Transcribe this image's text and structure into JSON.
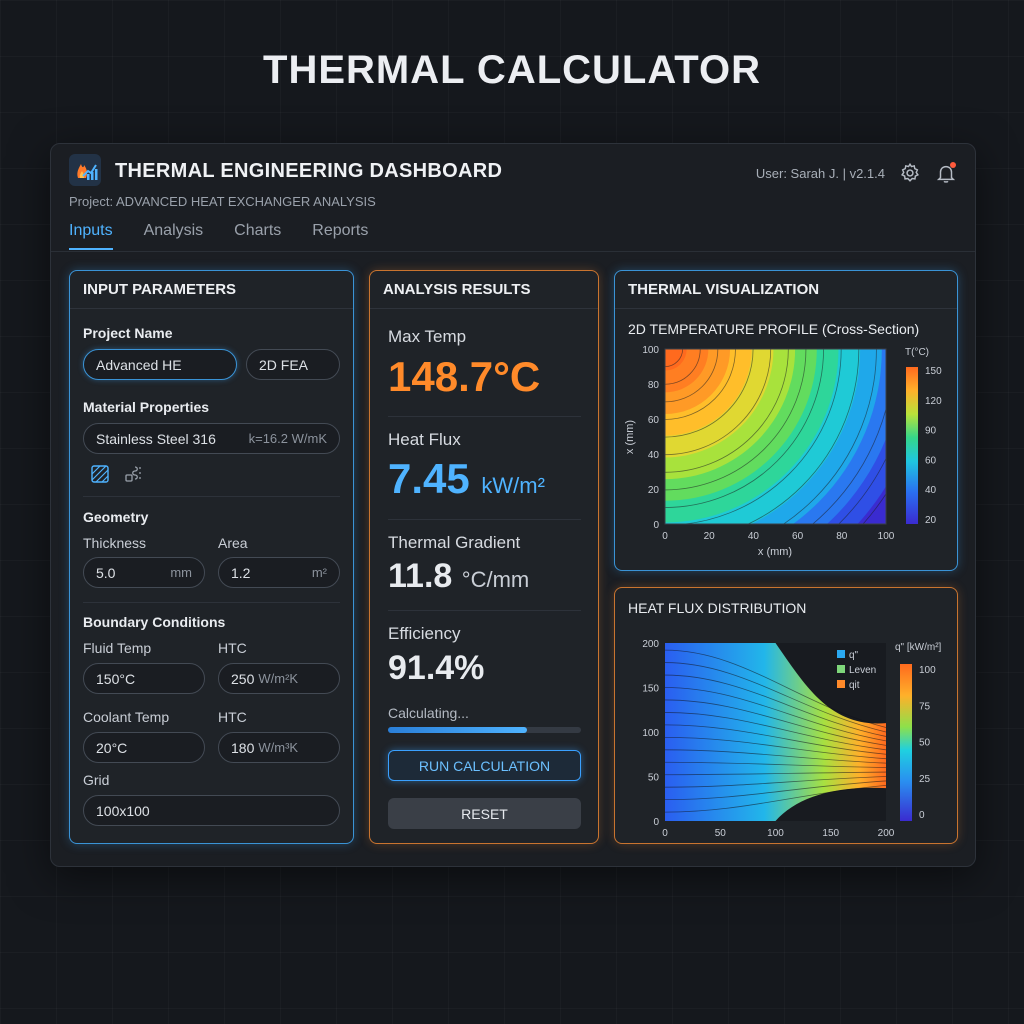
{
  "page": {
    "title": "THERMAL CALCULATOR"
  },
  "header": {
    "title": "THERMAL ENGINEERING DASHBOARD",
    "project": "Project: ADVANCED HEAT EXCHANGER ANALYSIS",
    "user_info": "User: Sarah J. | v2.1.4",
    "icons": [
      "flame-chart-logo-icon",
      "gear-icon",
      "bell-icon"
    ]
  },
  "tabs": [
    {
      "label": "Inputs",
      "active": true
    },
    {
      "label": "Analysis",
      "active": false
    },
    {
      "label": "Charts",
      "active": false
    },
    {
      "label": "Reports",
      "active": false
    }
  ],
  "inputs": {
    "title": "INPUT PARAMETERS",
    "project_name_label": "Project Name",
    "project_name_value": "Advanced HE",
    "method_value": "2D FEA",
    "material_label": "Material Properties",
    "material_value": "Stainless Steel 316",
    "material_k": "k=16.2 W/mK",
    "material_icons": [
      "hatch-pattern-icon",
      "material-tool-icon"
    ],
    "geometry_label": "Geometry",
    "thickness_label": "Thickness",
    "thickness_value": "5.0",
    "thickness_unit": "mm",
    "area_label": "Area",
    "area_value": "1.2",
    "area_unit": "m²",
    "boundary_label": "Boundary Conditions",
    "fluid_temp_label": "Fluid Temp",
    "fluid_temp_value": "150°C",
    "htc1_label": "HTC",
    "htc1_value": "250",
    "htc1_unit": "W/m²K",
    "coolant_temp_label": "Coolant Temp",
    "coolant_temp_value": "20°C",
    "htc2_label": "HTC",
    "htc2_value": "180",
    "htc2_unit": "W/m³K",
    "grid_label": "Grid",
    "grid_value": "100x100"
  },
  "results": {
    "title": "ANALYSIS RESULTS",
    "max_temp_label": "Max Temp",
    "max_temp_value": "148.7°C",
    "heat_flux_label": "Heat Flux",
    "heat_flux_value": "7.45",
    "heat_flux_unit": "kW/m²",
    "gradient_label": "Thermal Gradient",
    "gradient_value": "11.8",
    "gradient_unit": "°C/mm",
    "efficiency_label": "Efficiency",
    "efficiency_value": "91.4%",
    "status_text": "Calculating...",
    "progress": 0.72,
    "run_label": "RUN CALCULATION",
    "reset_label": "RESET",
    "colors": {
      "max_temp": "#ff8a2a",
      "heat_flux": "#4fb3ff"
    }
  },
  "visualization": {
    "title": "THERMAL VISUALIZATION"
  },
  "chart_data": [
    {
      "type": "heatmap",
      "title": "2D TEMPERATURE PROFILE (Cross-Section)",
      "xlabel": "x (mm)",
      "ylabel": "x (mm)",
      "xlim": [
        0,
        100
      ],
      "ylim": [
        0,
        100
      ],
      "xticks": [
        0,
        20,
        40,
        60,
        80,
        100
      ],
      "yticks": [
        0,
        20,
        40,
        60,
        80,
        100
      ],
      "colorbar": {
        "label": "T(°C)",
        "range": [
          20,
          150
        ],
        "ticks": [
          150,
          120,
          90,
          60,
          40,
          20
        ]
      },
      "description_values": {
        "max_region": "top-left",
        "min_region": "bottom-right"
      }
    },
    {
      "type": "heatmap",
      "title": "HEAT FLUX DISTRIBUTION",
      "xlim": [
        0,
        200
      ],
      "ylim": [
        0,
        200
      ],
      "xticks": [
        0,
        50,
        100,
        150,
        200
      ],
      "yticks": [
        0,
        50,
        100,
        150,
        200
      ],
      "colorbar": {
        "label": "q\" [kW/m²]",
        "range": [
          0,
          100
        ],
        "ticks": [
          100,
          75,
          50,
          25,
          0
        ]
      },
      "legend": [
        {
          "name": "q\"",
          "color": "#2aa8f0"
        },
        {
          "name": "Leven",
          "color": "#7ed67a"
        },
        {
          "name": "qit",
          "color": "#ff8a2a"
        }
      ]
    }
  ]
}
